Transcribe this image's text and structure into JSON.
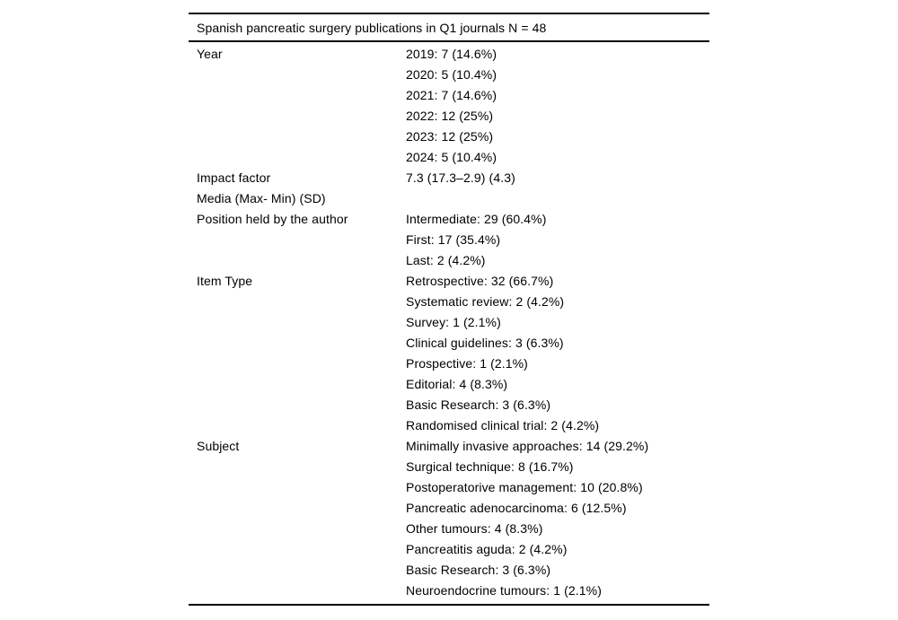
{
  "page": {
    "background_color": "#ffffff",
    "text_color": "#000000",
    "rule_color": "#000000"
  },
  "table": {
    "title": "Spanish pancreatic surgery publications in Q1 journals N = 48",
    "rows": [
      {
        "label_lines": [
          "Year"
        ],
        "value_lines": [
          "2019: 7 (14.6%)",
          "2020: 5 (10.4%)",
          "2021: 7 (14.6%)",
          "2022: 12 (25%)",
          "2023: 12 (25%)",
          "2024: 5 (10.4%)"
        ]
      },
      {
        "label_lines": [
          "Impact factor",
          "Media (Max- Min) (SD)"
        ],
        "value_lines": [
          "7.3 (17.3–2.9) (4.3)"
        ]
      },
      {
        "label_lines": [
          "Position held by the author"
        ],
        "value_lines": [
          "Intermediate: 29 (60.4%)",
          "First: 17 (35.4%)",
          "Last: 2 (4.2%)"
        ]
      },
      {
        "label_lines": [
          "Item Type"
        ],
        "value_lines": [
          "Retrospective: 32 (66.7%)",
          "Systematic review: 2 (4.2%)",
          "Survey: 1 (2.1%)",
          "Clinical guidelines: 3 (6.3%)",
          "Prospective: 1 (2.1%)",
          "Editorial: 4 (8.3%)",
          "Basic Research: 3 (6.3%)",
          "Randomised clinical trial: 2 (4.2%)"
        ]
      },
      {
        "label_lines": [
          "Subject"
        ],
        "value_lines": [
          "Minimally invasive approaches: 14 (29.2%)",
          "Surgical technique: 8 (16.7%)",
          "Postoperatorive management: 10 (20.8%)",
          "Pancreatic adenocarcinoma: 6 (12.5%)",
          "Other tumours: 4 (8.3%)",
          "Pancreatitis aguda: 2 (4.2%)",
          "Basic Research: 3 (6.3%)",
          "Neuroendocrine tumours: 1 (2.1%)"
        ]
      }
    ]
  }
}
